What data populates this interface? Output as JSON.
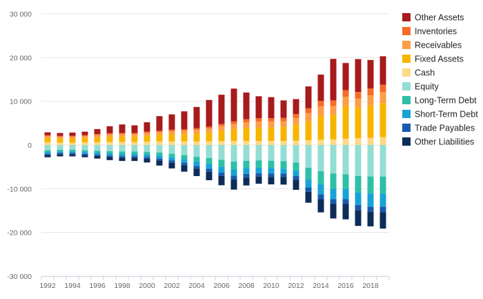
{
  "chart_data": {
    "type": "bar",
    "stacked": true,
    "title": "",
    "xlabel": "",
    "ylabel": "",
    "ylim": [
      -30000,
      30000
    ],
    "y_ticks": [
      30000,
      20000,
      10000,
      0,
      -10000,
      -20000,
      -30000
    ],
    "y_tick_labels": [
      "30 000",
      "20 000",
      "10 000",
      "0",
      "-10 000",
      "-20 000",
      "-30 000"
    ],
    "x_tick_labels": [
      "1992",
      "1994",
      "1996",
      "1998",
      "2000",
      "2002",
      "2004",
      "2006",
      "2008",
      "2010",
      "2012",
      "2014",
      "2016",
      "2018"
    ],
    "categories": [
      "1992",
      "1993",
      "1994",
      "1995",
      "1996",
      "1997",
      "1998",
      "1999",
      "2000",
      "2001",
      "2002",
      "2003",
      "2004",
      "2005",
      "2006",
      "2007",
      "2008",
      "2009",
      "2010",
      "2011",
      "2012",
      "2013",
      "2014",
      "2015",
      "2016",
      "2017",
      "2018",
      "2019"
    ],
    "legend_position": "right",
    "series": [
      {
        "name": "Cash",
        "side": "positive",
        "color": "#fdd985",
        "values": [
          600,
          550,
          550,
          600,
          650,
          700,
          700,
          700,
          750,
          800,
          800,
          800,
          800,
          850,
          900,
          900,
          900,
          950,
          950,
          950,
          1000,
          1100,
          1200,
          1300,
          1450,
          1550,
          1650,
          1800
        ]
      },
      {
        "name": "Fixed Assets",
        "side": "positive",
        "color": "#f7b500",
        "values": [
          1000,
          950,
          950,
          1000,
          1100,
          1200,
          1250,
          1250,
          1400,
          1500,
          1650,
          1700,
          1800,
          2000,
          2400,
          2700,
          3000,
          3000,
          3100,
          3200,
          3700,
          4400,
          5500,
          5600,
          7500,
          7000,
          7400,
          7800
        ]
      },
      {
        "name": "Receivables",
        "side": "positive",
        "color": "#fb9e48",
        "values": [
          450,
          400,
          400,
          450,
          500,
          550,
          550,
          550,
          600,
          650,
          700,
          750,
          850,
          900,
          1000,
          1200,
          1300,
          1400,
          1350,
          1300,
          1500,
          1800,
          2100,
          2000,
          2100,
          2100,
          2300,
          2500
        ]
      },
      {
        "name": "Inventories",
        "side": "positive",
        "color": "#f66b2a",
        "values": [
          200,
          200,
          200,
          200,
          250,
          250,
          250,
          250,
          300,
          300,
          350,
          350,
          400,
          450,
          500,
          600,
          700,
          800,
          750,
          750,
          900,
          1100,
          1300,
          1300,
          1500,
          1500,
          1600,
          1700
        ]
      },
      {
        "name": "Other Assets",
        "side": "positive",
        "color": "#a71b1d",
        "values": [
          650,
          650,
          750,
          800,
          1150,
          1600,
          1950,
          1750,
          2150,
          3350,
          3500,
          4100,
          4850,
          6100,
          6700,
          7500,
          6100,
          5000,
          4800,
          4000,
          3400,
          5000,
          6000,
          9500,
          6200,
          7500,
          6500,
          6500
        ]
      },
      {
        "name": "Equity",
        "side": "negative",
        "color": "#94ddd5",
        "values": [
          1200,
          1100,
          1100,
          1200,
          1300,
          1400,
          1500,
          1500,
          1600,
          1700,
          2000,
          2300,
          2700,
          3000,
          3400,
          3800,
          3600,
          3500,
          3600,
          3700,
          4000,
          5200,
          6000,
          6500,
          6700,
          7100,
          7200,
          7200
        ]
      },
      {
        "name": "Long-Term Debt",
        "side": "negative",
        "color": "#2fbfa7",
        "values": [
          400,
          350,
          350,
          400,
          450,
          500,
          550,
          550,
          600,
          700,
          800,
          900,
          1100,
          1300,
          1600,
          1800,
          1700,
          1700,
          1700,
          1700,
          1800,
          2700,
          3000,
          3500,
          3300,
          3800,
          3900,
          3900
        ]
      },
      {
        "name": "Short-Term Debt",
        "side": "negative",
        "color": "#18a3d6",
        "values": [
          400,
          350,
          350,
          400,
          450,
          500,
          500,
          500,
          550,
          650,
          750,
          850,
          1000,
          1150,
          1300,
          1400,
          1300,
          1250,
          1200,
          1150,
          1300,
          1800,
          2300,
          2400,
          2400,
          2800,
          3000,
          3000
        ]
      },
      {
        "name": "Trade Payables",
        "side": "negative",
        "color": "#1a5aac",
        "values": [
          300,
          300,
          300,
          300,
          300,
          350,
          350,
          350,
          400,
          450,
          500,
          550,
          600,
          700,
          800,
          900,
          850,
          800,
          800,
          800,
          850,
          1000,
          1100,
          1100,
          1100,
          1200,
          1200,
          1300
        ]
      },
      {
        "name": "Other Liabilities",
        "side": "negative",
        "color": "#0d2d58",
        "values": [
          500,
          500,
          500,
          500,
          600,
          700,
          750,
          750,
          850,
          1200,
          1300,
          1500,
          1700,
          1900,
          2100,
          2300,
          1800,
          1600,
          1700,
          1700,
          2300,
          2500,
          3000,
          3300,
          3500,
          3600,
          3300,
          3700
        ]
      }
    ],
    "legend_order": [
      "Other Assets",
      "Inventories",
      "Receivables",
      "Fixed Assets",
      "Cash",
      "Equity",
      "Long-Term Debt",
      "Short-Term Debt",
      "Trade Payables",
      "Other Liabilities"
    ]
  }
}
